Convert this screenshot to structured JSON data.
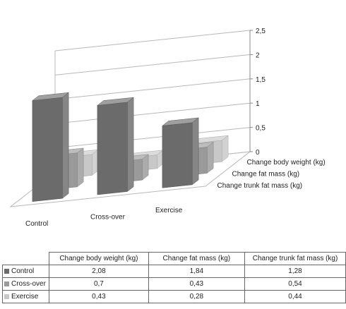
{
  "chart_data": {
    "type": "bar",
    "title": "",
    "categories": [
      "Change body weight (kg)",
      "Change fat mass (kg)",
      "Change trunk fat mass (kg)"
    ],
    "series": [
      {
        "name": "Control",
        "values": [
          2.08,
          1.84,
          1.28
        ],
        "color": "#6b6b6b"
      },
      {
        "name": "Cross-over",
        "values": [
          0.7,
          0.43,
          0.54
        ],
        "color": "#9a9a9a"
      },
      {
        "name": "Exercise",
        "values": [
          0.43,
          0.28,
          0.44
        ],
        "color": "#c8c8c8"
      }
    ],
    "depth_labels": [
      "Control",
      "Cross-over",
      "Exercise"
    ],
    "yticks": [
      "0",
      "0,5",
      "1",
      "1,5",
      "2",
      "2,5"
    ],
    "ylim": [
      0,
      2.5
    ],
    "table": {
      "headers": [
        "Change body weight (kg)",
        "Change fat mass (kg)",
        "Change trunk fat mass (kg)"
      ],
      "rows": [
        {
          "label": "Control",
          "values": [
            "2,08",
            "1,84",
            "1,28"
          ]
        },
        {
          "label": "Cross-over",
          "values": [
            "0,7",
            "0,43",
            "0,54"
          ]
        },
        {
          "label": "Exercise",
          "values": [
            "0,43",
            "0,28",
            "0,44"
          ]
        }
      ]
    }
  }
}
